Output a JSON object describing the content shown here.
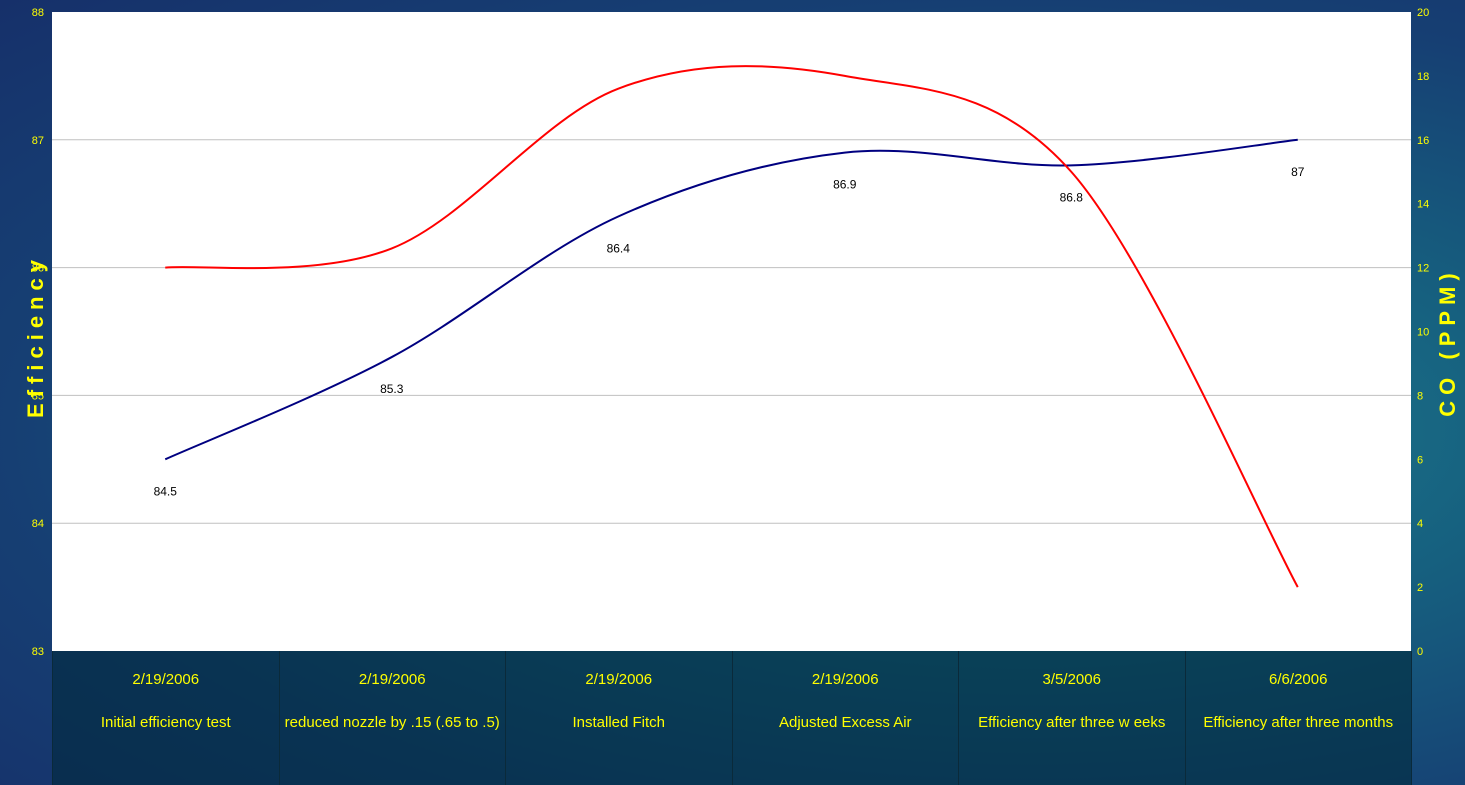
{
  "chart_data": {
    "type": "line",
    "title": "",
    "xlabel": "",
    "ylabel": "Efficiency",
    "y2label": "CO (PPM)",
    "ylim": [
      83,
      88
    ],
    "y2lim": [
      0,
      20
    ],
    "yticks": [
      "88",
      "87",
      "86",
      "85",
      "84",
      "83"
    ],
    "y2ticks": [
      "20",
      "18",
      "16",
      "14",
      "12",
      "10",
      "8",
      "6",
      "4",
      "2",
      "0"
    ],
    "categories": [
      {
        "date": "2/19/2006",
        "label": "Initial efficiency test"
      },
      {
        "date": "2/19/2006",
        "label": "reduced nozzle by .15 (.65 to .5)"
      },
      {
        "date": "2/19/2006",
        "label": "Installed Fitch"
      },
      {
        "date": "2/19/2006",
        "label": "Adjusted Excess Air"
      },
      {
        "date": "3/5/2006",
        "label": "Efficiency after three w eeks"
      },
      {
        "date": "6/6/2006",
        "label": "Efficiency after three months"
      }
    ],
    "series": [
      {
        "axis": "left",
        "color": "#000080",
        "values": [
          84.5,
          85.3,
          86.4,
          86.9,
          86.8,
          87
        ],
        "labels": [
          "84.5",
          "85.3",
          "86.4",
          "86.9",
          "86.8",
          "87"
        ]
      },
      {
        "axis": "right",
        "color": "#ff0000",
        "values": [
          12,
          12.6,
          17.6,
          18,
          15,
          2
        ]
      }
    ],
    "grid": true,
    "legend": "none"
  }
}
